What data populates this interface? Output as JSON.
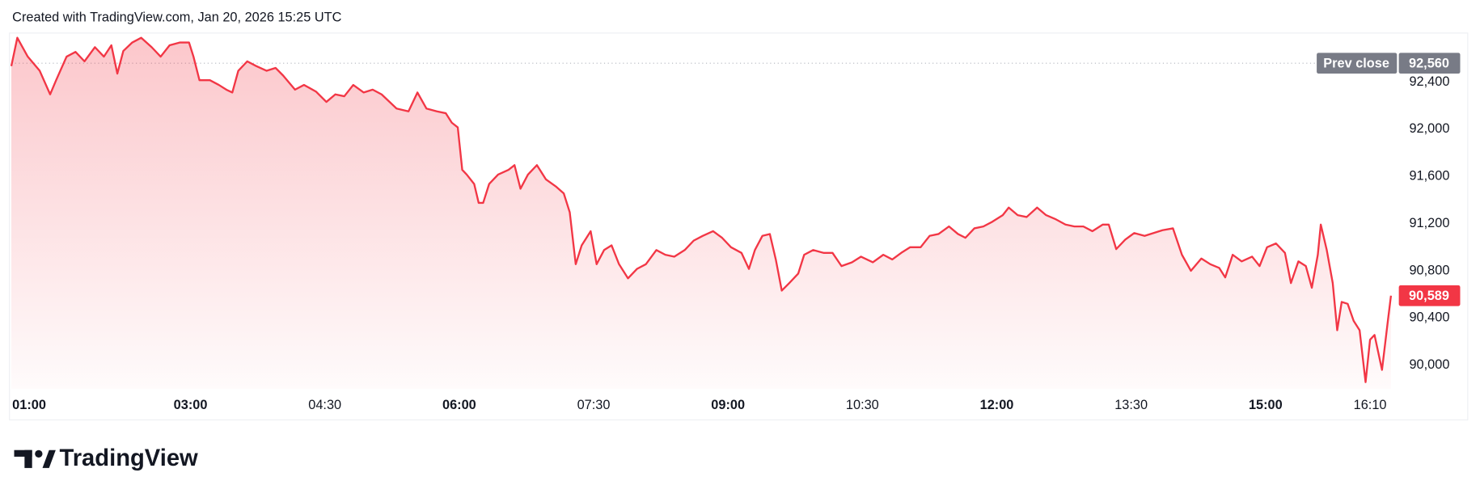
{
  "attribution": "Created with TradingView.com, Jan 20, 2026 15:25 UTC",
  "brand": "TradingView",
  "chart_data": {
    "type": "area",
    "color": "#f23645",
    "x": [
      0,
      4,
      11,
      19,
      26,
      30,
      37,
      43,
      49,
      56,
      62,
      67,
      71,
      75,
      81,
      87,
      94,
      100,
      106,
      113,
      119,
      122,
      126,
      133,
      139,
      144,
      148,
      152,
      158,
      164,
      171,
      177,
      182,
      190,
      196,
      204,
      211,
      217,
      223,
      229,
      236,
      242,
      248,
      258,
      266,
      272,
      278,
      285,
      291,
      295,
      299,
      302,
      305,
      310,
      313,
      316,
      320,
      326,
      333,
      337,
      341,
      346,
      352,
      358,
      365,
      370,
      374,
      378,
      382,
      388,
      392,
      397,
      402,
      407,
      413,
      419,
      425,
      432,
      438,
      444,
      451,
      457,
      463,
      470,
      476,
      482,
      489,
      494,
      498,
      503,
      508,
      512,
      516,
      521,
      527,
      531,
      537,
      544,
      550,
      556,
      563,
      569,
      577,
      584,
      590,
      596,
      602,
      609,
      615,
      621,
      628,
      634,
      639,
      645,
      651,
      657,
      664,
      668,
      674,
      680,
      687,
      693,
      699,
      706,
      712,
      718,
      724,
      731,
      735,
      740,
      746,
      752,
      759,
      765,
      771,
      778,
      784,
      790,
      797,
      803,
      809,
      813,
      818,
      824,
      831,
      836,
      841,
      847,
      853,
      857,
      862,
      867,
      871,
      875,
      877,
      881,
      885,
      888,
      891,
      895,
      899,
      903,
      907,
      910,
      913,
      918,
      922,
      924
    ],
    "values": [
      92536,
      92776,
      92616,
      92496,
      92296,
      92416,
      92616,
      92656,
      92576,
      92696,
      92616,
      92712,
      92472,
      92664,
      92736,
      92776,
      92696,
      92616,
      92712,
      92736,
      92736,
      92616,
      92416,
      92416,
      92376,
      92336,
      92312,
      92496,
      92576,
      92536,
      92496,
      92520,
      92456,
      92336,
      92376,
      92320,
      92232,
      92296,
      92280,
      92376,
      92312,
      92336,
      92296,
      92176,
      92152,
      92312,
      92176,
      92152,
      92136,
      92056,
      92016,
      91656,
      91616,
      91536,
      91376,
      91376,
      91536,
      91616,
      91656,
      91696,
      91496,
      91616,
      91696,
      91576,
      91512,
      91456,
      91296,
      90856,
      91016,
      91136,
      90856,
      90976,
      91016,
      90856,
      90736,
      90816,
      90856,
      90976,
      90936,
      90920,
      90976,
      91056,
      91096,
      91136,
      91080,
      91000,
      90952,
      90816,
      90976,
      91096,
      91112,
      90896,
      90632,
      90696,
      90776,
      90936,
      90976,
      90952,
      90952,
      90840,
      90872,
      90920,
      90872,
      90936,
      90896,
      90952,
      91000,
      91000,
      91096,
      91112,
      91176,
      91112,
      91080,
      91160,
      91176,
      91216,
      91272,
      91336,
      91272,
      91256,
      91336,
      91272,
      91240,
      91192,
      91176,
      91176,
      91136,
      91192,
      91192,
      90984,
      91064,
      91120,
      91096,
      91120,
      91144,
      91160,
      90936,
      90800,
      90904,
      90856,
      90824,
      90744,
      90936,
      90880,
      90920,
      90840,
      91000,
      91032,
      90952,
      90696,
      90880,
      90840,
      90656,
      90936,
      91192,
      90976,
      90696,
      90296,
      90536,
      90520,
      90376,
      90296,
      89856,
      90216,
      90256,
      89960,
      90384,
      90589
    ],
    "xlim": [
      0,
      928
    ],
    "xticks": [
      {
        "value": 0,
        "label": "01:00"
      },
      {
        "value": 120,
        "label": "03:00"
      },
      {
        "value": 210,
        "label": "04:30"
      },
      {
        "value": 300,
        "label": "06:00"
      },
      {
        "value": 390,
        "label": "07:30"
      },
      {
        "value": 480,
        "label": "09:00"
      },
      {
        "value": 570,
        "label": "10:30"
      },
      {
        "value": 660,
        "label": "12:00"
      },
      {
        "value": 750,
        "label": "13:30"
      },
      {
        "value": 840,
        "label": "15:00"
      },
      {
        "value": 910,
        "label": "16:10"
      }
    ],
    "ylim": [
      89800,
      92820
    ],
    "yticks": [
      {
        "value": 90000,
        "label": "90,000"
      },
      {
        "value": 90400,
        "label": "90,400"
      },
      {
        "value": 90800,
        "label": "90,800"
      },
      {
        "value": 91200,
        "label": "91,200"
      },
      {
        "value": 91600,
        "label": "91,600"
      },
      {
        "value": 92000,
        "label": "92,000"
      },
      {
        "value": 92400,
        "label": "92,400"
      }
    ],
    "reference_line": {
      "label": "Prev close",
      "value": 92560,
      "value_label": "92,560"
    },
    "last_value_label": "90,589"
  }
}
